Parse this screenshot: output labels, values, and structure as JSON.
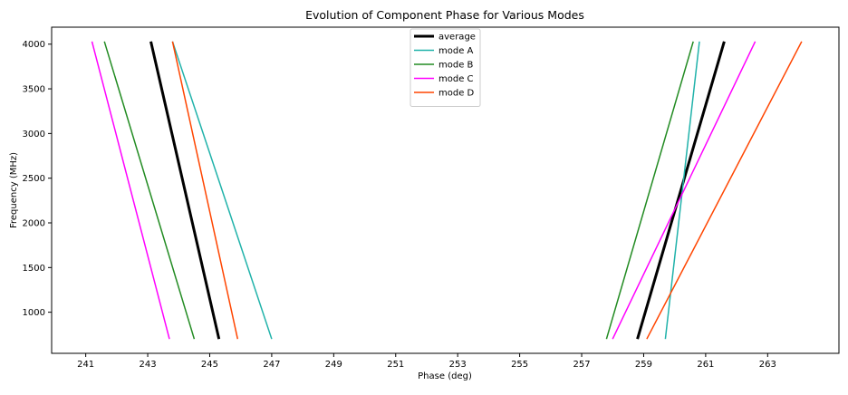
{
  "chart_data": {
    "type": "line",
    "title": "Evolution of Component Phase for Various Modes",
    "xlabel": "Phase (deg)",
    "ylabel": "Frequency (MHz)",
    "xlim": [
      239.9,
      265.3
    ],
    "ylim": [
      540,
      4190
    ],
    "x_ticks": [
      241,
      243,
      245,
      247,
      249,
      251,
      253,
      255,
      257,
      259,
      261,
      263
    ],
    "y_ticks": [
      1000,
      1500,
      2000,
      2500,
      3000,
      3500,
      4000
    ],
    "grid": false,
    "legend_position": "top-center",
    "series": [
      {
        "name": "average",
        "color": "#000000",
        "width": 3,
        "segments": [
          [
            [
              245.3,
              700
            ],
            [
              243.1,
              4030
            ]
          ],
          [
            [
              258.8,
              700
            ],
            [
              261.6,
              4030
            ]
          ]
        ]
      },
      {
        "name": "mode A",
        "color": "#20b2aa",
        "width": 1.5,
        "segments": [
          [
            [
              247.0,
              700
            ],
            [
              243.8,
              4030
            ]
          ],
          [
            [
              259.7,
              700
            ],
            [
              260.8,
              4030
            ]
          ]
        ]
      },
      {
        "name": "mode B",
        "color": "#228b22",
        "width": 1.5,
        "segments": [
          [
            [
              244.5,
              700
            ],
            [
              241.6,
              4030
            ]
          ],
          [
            [
              257.8,
              700
            ],
            [
              260.6,
              4030
            ]
          ]
        ]
      },
      {
        "name": "mode C",
        "color": "#ff00ff",
        "width": 1.5,
        "segments": [
          [
            [
              243.7,
              700
            ],
            [
              241.2,
              4030
            ]
          ],
          [
            [
              258.0,
              700
            ],
            [
              262.6,
              4030
            ]
          ]
        ]
      },
      {
        "name": "mode D",
        "color": "#ff4500",
        "width": 1.5,
        "segments": [
          [
            [
              245.9,
              700
            ],
            [
              243.8,
              4030
            ]
          ],
          [
            [
              259.1,
              700
            ],
            [
              264.1,
              4030
            ]
          ]
        ]
      }
    ]
  }
}
